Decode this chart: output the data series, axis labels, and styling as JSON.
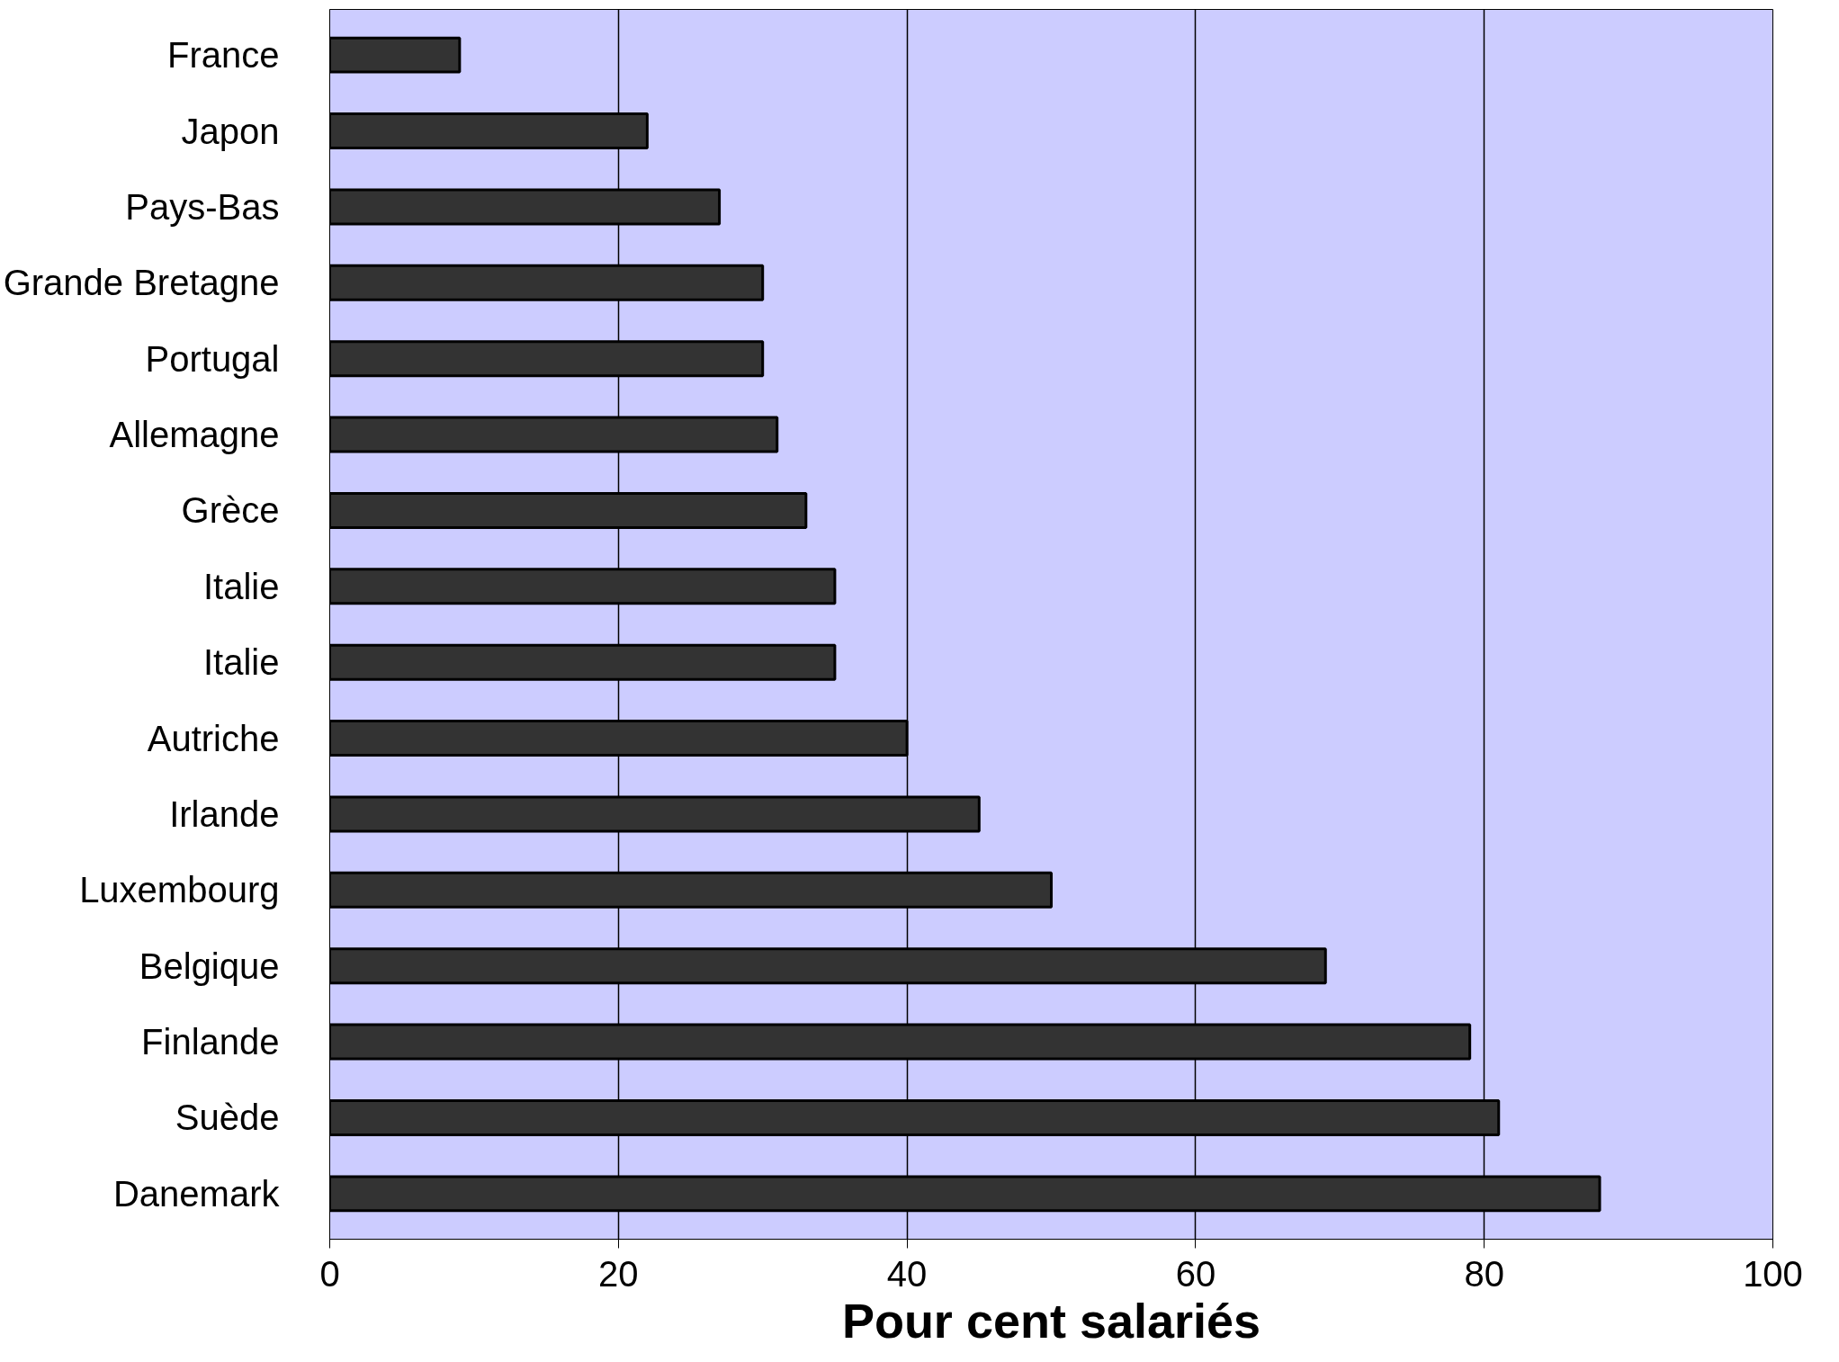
{
  "chart_data": {
    "type": "bar",
    "orientation": "horizontal",
    "categories": [
      "France",
      "Japon",
      "Pays-Bas",
      "Grande Bretagne",
      "Portugal",
      "Allemagne",
      "Grèce",
      "Italie",
      "Italie",
      "Autriche",
      "Irlande",
      "Luxembourg",
      "Belgique",
      "Finlande",
      "Suède",
      "Danemark"
    ],
    "values": [
      9,
      22,
      27,
      30,
      30,
      31,
      33,
      35,
      35,
      40,
      45,
      50,
      69,
      79,
      81,
      88
    ],
    "color": "#333333",
    "xlim": [
      0,
      100
    ],
    "xticks": [
      0,
      20,
      40,
      60,
      80,
      100
    ],
    "xlabel": "Pour cent salariés",
    "grid": "x"
  }
}
